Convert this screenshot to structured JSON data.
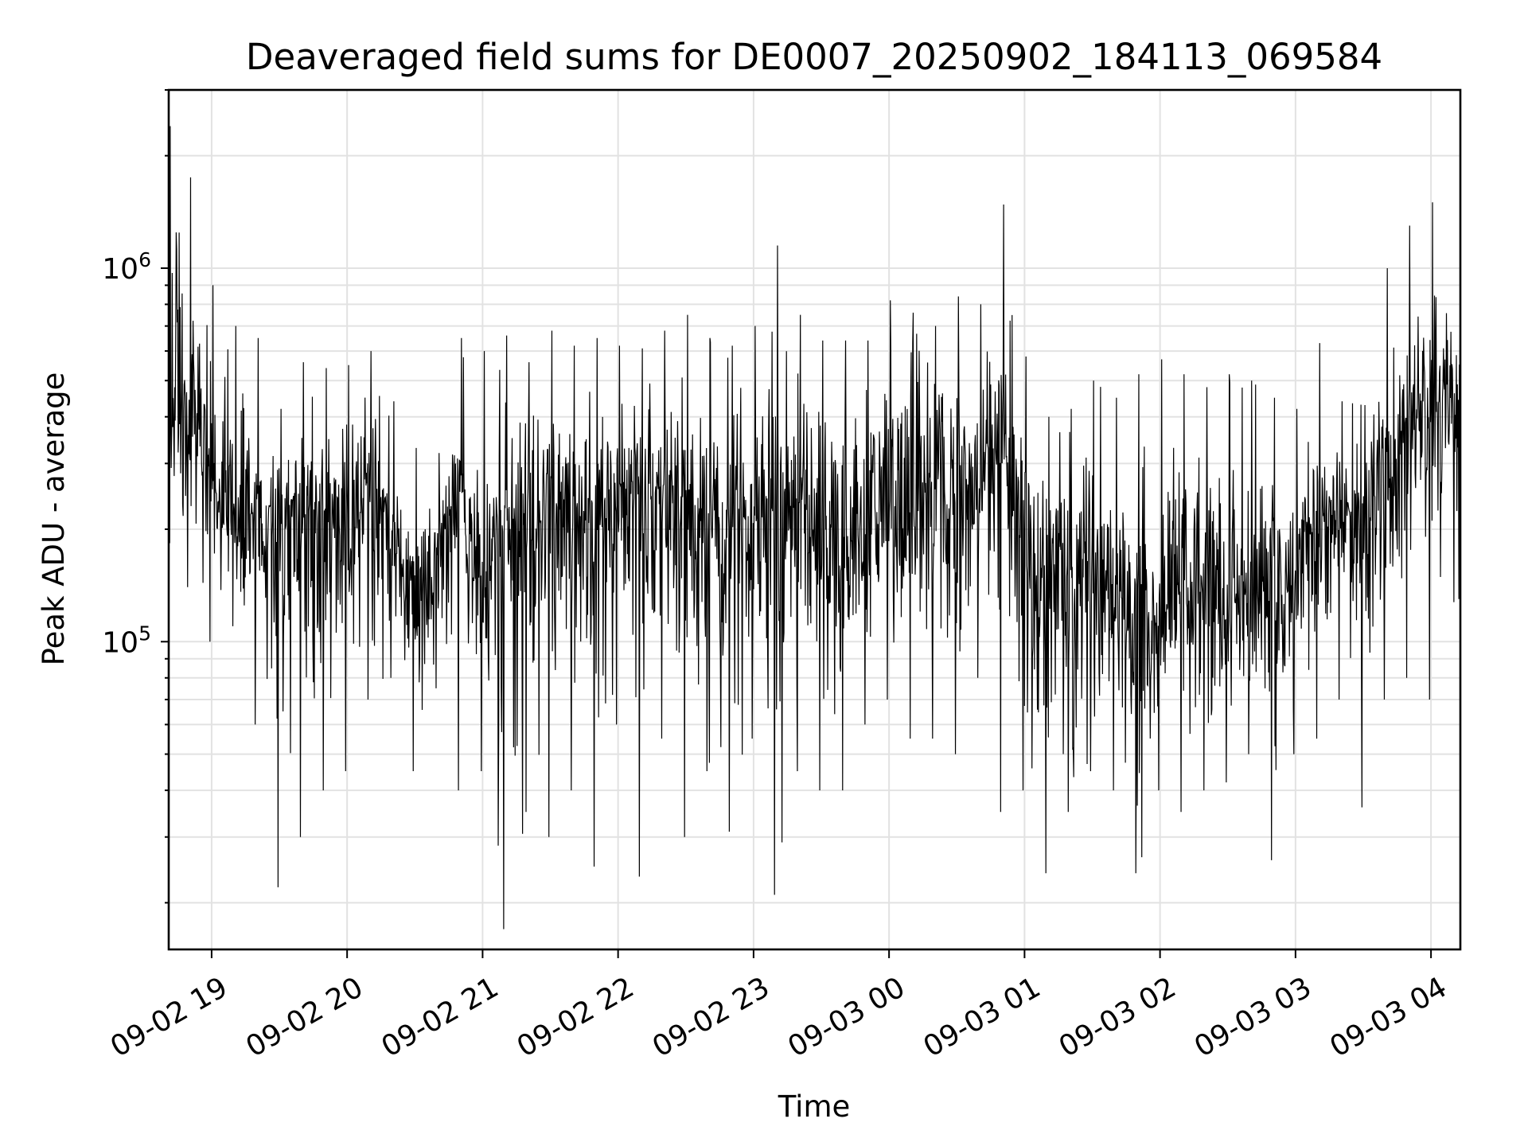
{
  "chart_data": {
    "type": "line",
    "title": "Deaveraged field sums for DE0007_20250902_184113_069584",
    "xlabel": "Time",
    "ylabel": "Peak ADU - average",
    "yscale": "log",
    "grid": true,
    "line_color": "#000000",
    "xlim": [
      "09-02 18:41",
      "09-03 04:13"
    ],
    "ylim": [
      15000,
      3000000
    ],
    "x_ticks": [
      "09-02 19",
      "09-02 20",
      "09-02 21",
      "09-02 22",
      "09-02 23",
      "09-03 00",
      "09-03 01",
      "09-03 02",
      "09-03 03",
      "09-03 04"
    ],
    "y_ticks": [
      {
        "value": 100000,
        "base": "10",
        "exp": "5"
      },
      {
        "value": 1000000,
        "base": "10",
        "exp": "6"
      }
    ],
    "series": [
      {
        "x": [
          "09-02 18:41",
          "09-02 18:50",
          "09-02 19:00",
          "09-02 19:10",
          "09-02 19:20",
          "09-02 19:30",
          "09-02 19:40",
          "09-02 19:50",
          "09-02 20:00",
          "09-02 20:10",
          "09-02 20:20",
          "09-02 20:30",
          "09-02 20:40",
          "09-02 20:50",
          "09-02 21:00",
          "09-02 21:10",
          "09-02 21:20",
          "09-02 21:30",
          "09-02 21:40",
          "09-02 21:50",
          "09-02 22:00",
          "09-02 22:10",
          "09-02 22:20",
          "09-02 22:30",
          "09-02 22:40",
          "09-02 22:50",
          "09-02 23:00",
          "09-02 23:10",
          "09-02 23:20",
          "09-02 23:30",
          "09-02 23:40",
          "09-02 23:50",
          "09-03 00:00",
          "09-03 00:10",
          "09-03 00:20",
          "09-03 00:30",
          "09-03 00:40",
          "09-03 00:50",
          "09-03 01:00",
          "09-03 01:10",
          "09-03 01:20",
          "09-03 01:30",
          "09-03 01:40",
          "09-03 01:50",
          "09-03 02:00",
          "09-03 02:10",
          "09-03 02:20",
          "09-03 02:30",
          "09-03 02:40",
          "09-03 02:50",
          "09-03 03:00",
          "09-03 03:10",
          "09-03 03:20",
          "09-03 03:30",
          "09-03 03:40",
          "09-03 03:50",
          "09-03 04:00",
          "09-03 04:13"
        ],
        "y": [
          400000,
          380000,
          290000,
          230000,
          205000,
          200000,
          215000,
          225000,
          230000,
          240000,
          205000,
          120000,
          180000,
          230000,
          140000,
          190000,
          200000,
          180000,
          210000,
          230000,
          250000,
          260000,
          220000,
          230000,
          210000,
          200000,
          230000,
          230000,
          220000,
          215000,
          225000,
          220000,
          240000,
          250000,
          260000,
          270000,
          285000,
          300000,
          210000,
          145000,
          160000,
          140000,
          130000,
          135000,
          130000,
          140000,
          135000,
          130000,
          135000,
          140000,
          140000,
          210000,
          220000,
          210000,
          260000,
          360000,
          430000,
          420000
        ],
        "y_min": [
          130000,
          140000,
          100000,
          110000,
          60000,
          22000,
          30000,
          40000,
          45000,
          70000,
          80000,
          45000,
          75000,
          40000,
          45000,
          17000,
          35000,
          30000,
          40000,
          25000,
          60000,
          23500,
          55000,
          30000,
          45000,
          31000,
          55000,
          21000,
          45000,
          40000,
          40000,
          60000,
          70000,
          55000,
          55000,
          50000,
          80000,
          35000,
          40000,
          24000,
          35000,
          45000,
          40000,
          24000,
          40000,
          35000,
          40000,
          42000,
          50000,
          26000,
          50000,
          55000,
          70000,
          36000,
          70000,
          80000,
          70000,
          130000
        ],
        "y_max": [
          2400000,
          1750000,
          900000,
          700000,
          650000,
          420000,
          560000,
          540000,
          550000,
          600000,
          440000,
          330000,
          320000,
          650000,
          600000,
          660000,
          560000,
          680000,
          620000,
          650000,
          620000,
          610000,
          680000,
          750000,
          650000,
          620000,
          700000,
          1150000,
          750000,
          640000,
          640000,
          640000,
          820000,
          760000,
          700000,
          840000,
          800000,
          1480000,
          580000,
          400000,
          420000,
          500000,
          450000,
          520000,
          570000,
          520000,
          480000,
          520000,
          500000,
          450000,
          420000,
          630000,
          440000,
          430000,
          1000000,
          1300000,
          1500000,
          1300000
        ]
      }
    ]
  }
}
